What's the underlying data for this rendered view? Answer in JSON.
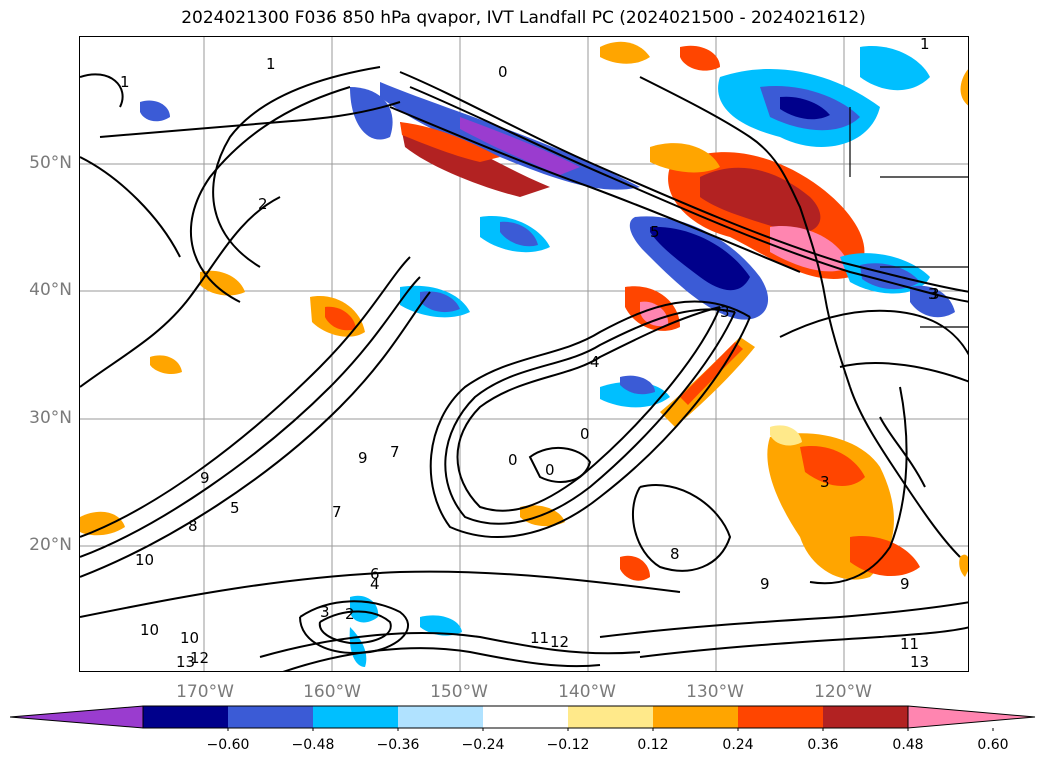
{
  "title": "2024021300 F036 850 hPa qvapor, IVT Landfall PC (2024021500 - 2024021612)",
  "lat_labels": [
    "50°N",
    "40°N",
    "30°N",
    "20°N"
  ],
  "lon_labels": [
    "170°W",
    "160°W",
    "150°W",
    "140°W",
    "130°W",
    "120°W"
  ],
  "colorbar": {
    "colors": [
      "#9a3ccf",
      "#00008b",
      "#3b5bd6",
      "#00bfff",
      "#b0e2ff",
      "#ffffff",
      "#ffe98a",
      "#ffa500",
      "#ff4500",
      "#b22222",
      "#ff85b0"
    ],
    "ticks": [
      "−0.60",
      "−0.48",
      "−0.36",
      "−0.24",
      "−0.12",
      "0.12",
      "0.24",
      "0.36",
      "0.48",
      "0.60"
    ]
  },
  "contour_labels": [
    "0",
    "1",
    "1",
    "1",
    "2",
    "3",
    "3",
    "3",
    "4",
    "5",
    "7",
    "7",
    "8",
    "8",
    "9",
    "9",
    "9",
    "9",
    "10",
    "10",
    "10",
    "11",
    "11",
    "12",
    "12",
    "13",
    "13",
    "6",
    "4",
    "3",
    "2",
    "0",
    "0",
    "0",
    "5",
    "3"
  ]
}
